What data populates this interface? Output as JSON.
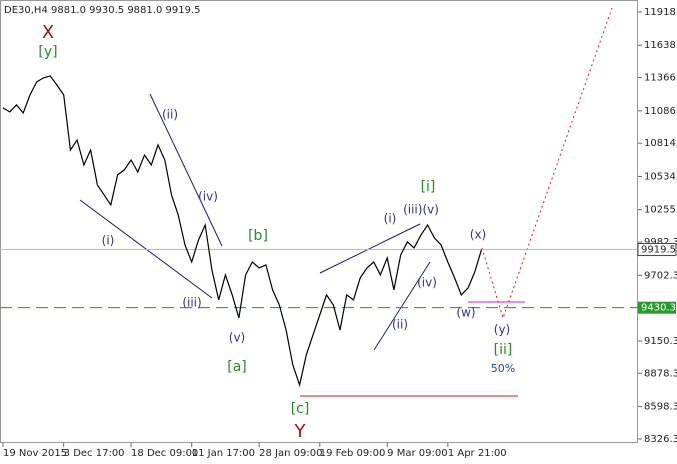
{
  "chart_data": {
    "type": "line",
    "title": "DE30,H4  9881.0 9930.5 9881.0 9919.5",
    "categories": [
      "19 Nov 2015",
      null,
      null,
      null,
      null,
      null,
      null,
      null,
      null,
      "3 Dec 17:00",
      null,
      null,
      null,
      null,
      null,
      null,
      null,
      null,
      null,
      "18 Dec 09:00",
      null,
      null,
      null,
      null,
      null,
      null,
      null,
      null,
      "11 Jan 17:00",
      null,
      null,
      null,
      null,
      null,
      null,
      null,
      null,
      null,
      "28 Jan 09:00",
      null,
      null,
      null,
      null,
      null,
      null,
      null,
      null,
      "19 Feb 09:00",
      null,
      null,
      null,
      null,
      null,
      null,
      null,
      null,
      null,
      "9 Mar 09:00",
      null,
      null,
      null,
      null,
      null,
      null,
      null,
      null,
      "1 Apr 21:00",
      null,
      null,
      null,
      null,
      null
    ],
    "series": [
      {
        "name": "DE30",
        "color": "#000000",
        "values": [
          11111,
          11077,
          11136,
          11069,
          11220,
          11330,
          11363,
          11380,
          11304,
          11220,
          10757,
          10841,
          10631,
          10757,
          10463,
          10379,
          10295,
          10547,
          10589,
          10673,
          10572,
          10715,
          10631,
          10800,
          10673,
          10379,
          10211,
          9958,
          9815,
          10000,
          10126,
          9748,
          9496,
          9706,
          9538,
          9344,
          9706,
          9815,
          9765,
          9790,
          9580,
          9454,
          9243,
          8949,
          8781,
          9033,
          9201,
          9370,
          9538,
          9454,
          9243,
          9538,
          9496,
          9681,
          9765,
          9815,
          9706,
          9849,
          9580,
          9874,
          9984,
          9933,
          10042,
          10126,
          10017,
          9958,
          9815,
          9681,
          9538,
          9597,
          9731,
          9919.5
        ]
      }
    ],
    "ylim": [
      8292,
      11985
    ],
    "yticks": [
      8326.3,
      8598.3,
      8878.3,
      9150.3,
      9702.3,
      9982.3,
      10255.3,
      10534.3,
      10814.3,
      11086.3,
      11366.3,
      11638.3,
      11918.3
    ],
    "current_price": 9919.5,
    "support_level": 9430.3,
    "annotations": [
      {
        "text": "X",
        "color": "#a01010"
      },
      {
        "text": "[y]",
        "color": "#2a8a2a"
      },
      {
        "text": "(ii)",
        "color": "#33338a"
      },
      {
        "text": "(iv)",
        "color": "#33338a"
      },
      {
        "text": "(i)",
        "color": "#33338a"
      },
      {
        "text": "(iii)",
        "color": "#33338a"
      },
      {
        "text": "(v)",
        "color": "#33338a"
      },
      {
        "text": "[a]",
        "color": "#2a8a2a"
      },
      {
        "text": "[b]",
        "color": "#2a8a2a"
      },
      {
        "text": "[c]",
        "color": "#2a8a2a"
      },
      {
        "text": "Y",
        "color": "#a01010"
      },
      {
        "text": "(i)",
        "color": "#33338a"
      },
      {
        "text": "(iii)(v)",
        "color": "#33338a"
      },
      {
        "text": "[i]",
        "color": "#2a8a2a"
      },
      {
        "text": "(iv)",
        "color": "#33338a"
      },
      {
        "text": "(ii)",
        "color": "#33338a"
      },
      {
        "text": "(x)",
        "color": "#33338a"
      },
      {
        "text": "(w)",
        "color": "#33338a"
      },
      {
        "text": "(y)",
        "color": "#33338a"
      },
      {
        "text": "[ii]",
        "color": "#2a8a2a"
      },
      {
        "text": "50%",
        "color": "#2244aa"
      }
    ]
  }
}
